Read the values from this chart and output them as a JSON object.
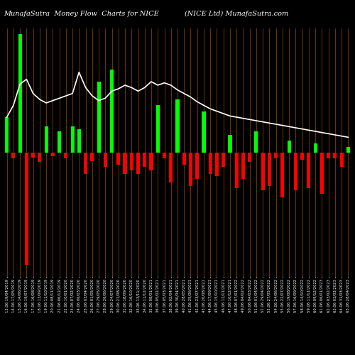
{
  "title_left": "MunafaSutra  Money Flow  Charts for NICE",
  "title_right": "(NICE Ltd) MunafaSutra.com",
  "bg_color": "#000000",
  "bar_color_pos": "#00FF00",
  "bar_color_neg": "#FF0000",
  "grid_color": "#8B4500",
  "line_color": "#FFFFFF",
  "categories": [
    "13.06 19/04/2019",
    "14.06 17/05/2019",
    "15.06 14/06/2019",
    "16.06 19/07/2019",
    "17.06 16/08/2019",
    "18.06 13/09/2019",
    "19.06 11/10/2019",
    "20.06 08/11/2019",
    "21.06 06/12/2019",
    "22.06 10/01/2020",
    "23.06 07/02/2020",
    "24.06 06/03/2020",
    "25.06 03/04/2020",
    "26.06 01/05/2020",
    "27.06 29/05/2020",
    "28.06 26/06/2020",
    "29.06 24/07/2020",
    "30.06 21/08/2020",
    "31.06 18/09/2020",
    "32.06 16/10/2020",
    "33.06 13/11/2020",
    "34.06 11/12/2020",
    "35.06 08/01/2021",
    "36.06 05/02/2021",
    "37.06 05/03/2021",
    "38.06 02/04/2021",
    "39.06 30/04/2021",
    "40.06 28/05/2021",
    "41.06 25/06/2021",
    "42.06 23/07/2021",
    "43.06 20/08/2021",
    "44.06 17/09/2021",
    "45.06 15/10/2021",
    "46.06 12/11/2021",
    "47.06 10/12/2021",
    "48.06 07/01/2022",
    "49.06 04/02/2022",
    "50.06 04/03/2022",
    "51.06 01/04/2022",
    "52.06 29/04/2022",
    "53.06 27/05/2022",
    "54.06 24/06/2022",
    "55.06 22/07/2022",
    "56.06 19/08/2022",
    "57.06 16/09/2022",
    "58.06 14/10/2022",
    "59.06 11/11/2022",
    "60.06 09/12/2022",
    "61.06 06/01/2023",
    "62.06 03/02/2023",
    "63.06 03/03/2023",
    "64.06 31/03/2023",
    "65.06 28/04/2023"
  ],
  "bar_values": [
    30,
    -5,
    100,
    -95,
    -4,
    -8,
    22,
    -3,
    18,
    -5,
    22,
    20,
    -18,
    -7,
    60,
    -12,
    70,
    -10,
    -18,
    -15,
    -18,
    -12,
    -15,
    40,
    -5,
    -25,
    45,
    -10,
    -28,
    -22,
    35,
    -18,
    -20,
    -12,
    15,
    -30,
    -22,
    -8,
    18,
    -32,
    -28,
    -5,
    -38,
    10,
    -32,
    -6,
    -30,
    8,
    -35,
    -5,
    -5,
    -12,
    5
  ],
  "line_values": [
    30,
    40,
    58,
    62,
    50,
    45,
    42,
    44,
    46,
    48,
    50,
    68,
    55,
    48,
    44,
    46,
    52,
    54,
    57,
    55,
    52,
    55,
    60,
    57,
    59,
    57,
    53,
    50,
    47,
    43,
    40,
    37,
    35,
    33,
    31,
    30,
    29,
    28,
    27,
    26,
    25,
    24,
    23,
    22,
    21,
    20,
    19,
    18,
    17,
    16,
    15,
    14,
    13
  ],
  "figsize": [
    5.0,
    5.0
  ],
  "dpi": 100
}
